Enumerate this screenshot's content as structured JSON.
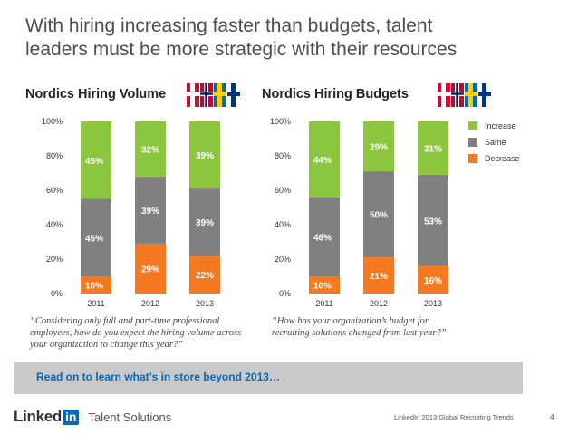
{
  "slide": {
    "title_line1": "With hiring increasing faster than budgets, talent",
    "title_line2": "leaders must be more strategic with their resources"
  },
  "colors": {
    "increase": "#8cc63f",
    "same": "#808080",
    "decrease": "#f47920",
    "accent": "#0a67b2"
  },
  "chart_data": [
    {
      "type": "bar",
      "stacked": true,
      "title": "Nordics Hiring Volume",
      "categories": [
        "2011",
        "2012",
        "2013"
      ],
      "series": [
        {
          "name": "Decrease",
          "values": [
            10,
            29,
            22
          ],
          "labels": [
            "10%",
            "29%",
            "22%"
          ]
        },
        {
          "name": "Same",
          "values": [
            45,
            39,
            39
          ],
          "labels": [
            "45%",
            "39%",
            "39%"
          ]
        },
        {
          "name": "Increase",
          "values": [
            45,
            32,
            39
          ],
          "labels": [
            "45%",
            "32%",
            "39%"
          ]
        }
      ],
      "ylim": [
        0,
        100
      ],
      "yticks": [
        "0%",
        "20%",
        "40%",
        "60%",
        "80%",
        "100%"
      ],
      "caption": "“Considering only full and part-time professional employees, how do you expect the hiring volume across your organization to change this year?”"
    },
    {
      "type": "bar",
      "stacked": true,
      "title": "Nordics Hiring Budgets",
      "categories": [
        "2011",
        "2012",
        "2013"
      ],
      "series": [
        {
          "name": "Decrease",
          "values": [
            10,
            21,
            16
          ],
          "labels": [
            "10%",
            "21%",
            "16%"
          ]
        },
        {
          "name": "Same",
          "values": [
            46,
            50,
            53
          ],
          "labels": [
            "46%",
            "50%",
            "53%"
          ]
        },
        {
          "name": "Increase",
          "values": [
            44,
            29,
            31
          ],
          "labels": [
            "44%",
            "29%",
            "31%"
          ]
        }
      ],
      "ylim": [
        0,
        100
      ],
      "yticks": [
        "0%",
        "20%",
        "40%",
        "60%",
        "80%",
        "100%"
      ],
      "legend": [
        "Increase",
        "Same",
        "Decrease"
      ],
      "caption": "“How has your organization’s budget for recruiting solutions changed from last year?”"
    }
  ],
  "cta": {
    "text": "Read on to learn what’s in store beyond 2013…"
  },
  "footer": {
    "logo_linked": "Linked",
    "logo_in": "in",
    "logo_product": "Talent Solutions",
    "report": "LinkedIn 2013 Global Recruiting Trends",
    "page": "4"
  }
}
